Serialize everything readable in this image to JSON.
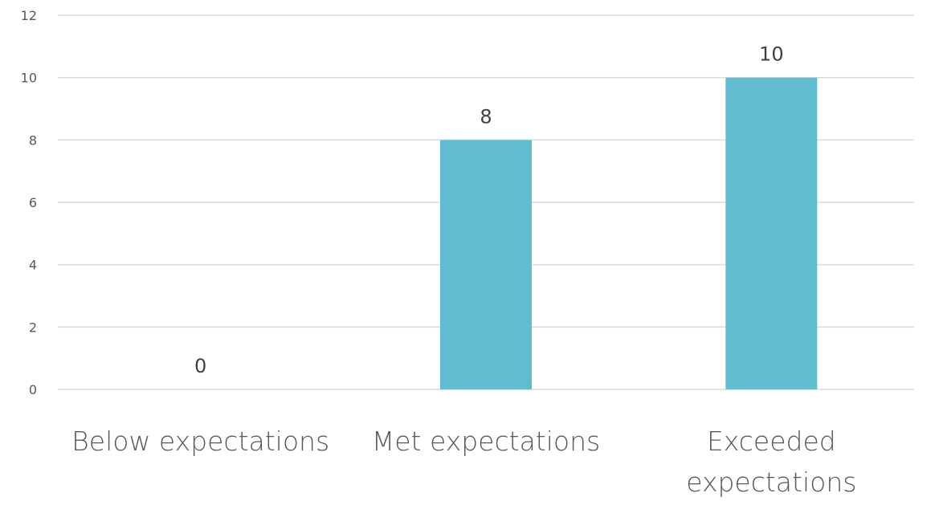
{
  "colors": {
    "bar": "#61bccf",
    "gridline": "#d9d9d9"
  },
  "chart_data": {
    "type": "bar",
    "categories": [
      [
        "Below expectations"
      ],
      [
        "Met expectations"
      ],
      [
        "Exceeded",
        "expectations"
      ]
    ],
    "values": [
      0,
      8,
      10
    ],
    "data_labels": [
      "0",
      "8",
      "10"
    ],
    "yticks": [
      "0",
      "2",
      "4",
      "6",
      "8",
      "10",
      "12"
    ],
    "ylim": [
      0,
      12
    ],
    "grid": true,
    "legend": "none",
    "title": "",
    "xlabel": "",
    "ylabel": ""
  }
}
